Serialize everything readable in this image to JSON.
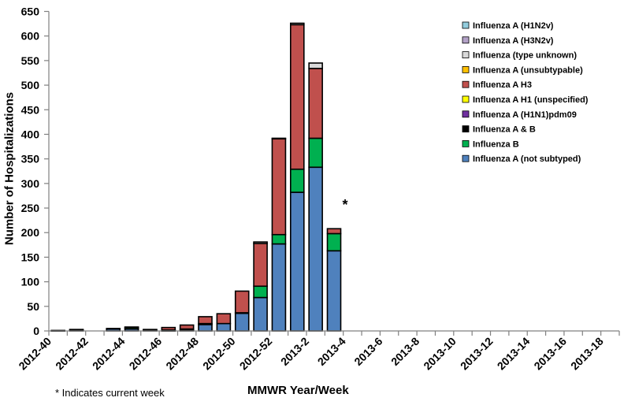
{
  "chart_data": {
    "type": "bar",
    "stacked": true,
    "xlabel": "MMWR Year/Week",
    "ylabel": "Number of Hospitalizations",
    "ylim": [
      0,
      650
    ],
    "yticks": [
      0,
      50,
      100,
      150,
      200,
      250,
      300,
      350,
      400,
      450,
      500,
      550,
      600,
      650
    ],
    "grid": false,
    "legend_position": "top-right",
    "categories": [
      "2012-40",
      "2012-41",
      "2012-42",
      "2012-43",
      "2012-44",
      "2012-45",
      "2012-46",
      "2012-47",
      "2012-48",
      "2012-49",
      "2012-50",
      "2012-51",
      "2012-52",
      "2013-1",
      "2013-2",
      "2013-3",
      "2013-4",
      "2013-5",
      "2013-6",
      "2013-7",
      "2013-8",
      "2013-9",
      "2013-10",
      "2013-11",
      "2013-12",
      "2013-13",
      "2013-14",
      "2013-15",
      "2013-16",
      "2013-17",
      "2013-18"
    ],
    "tick_labels": [
      "2012-40",
      "2012-42",
      "2012-44",
      "2012-46",
      "2012-48",
      "2012-50",
      "2012-52",
      "2013-2",
      "2013-4",
      "2013-6",
      "2013-8",
      "2013-10",
      "2013-12",
      "2013-14",
      "2013-16",
      "2013-18"
    ],
    "series": [
      {
        "name": "Influenza A (not subtyped)",
        "color": "#4f81bd",
        "values": [
          1,
          2,
          0,
          4,
          4,
          2,
          1,
          2,
          13,
          15,
          36,
          68,
          177,
          282,
          333,
          163,
          0,
          0,
          0,
          0,
          0,
          0,
          0,
          0,
          0,
          0,
          0,
          0,
          0,
          0,
          0
        ]
      },
      {
        "name": "Influenza B",
        "color": "#00b050",
        "values": [
          0,
          1,
          0,
          1,
          3,
          0,
          1,
          2,
          2,
          0,
          1,
          23,
          19,
          47,
          59,
          35,
          0,
          0,
          0,
          0,
          0,
          0,
          0,
          0,
          0,
          0,
          0,
          0,
          0,
          0,
          0
        ]
      },
      {
        "name": "Influenza A & B",
        "color": "#000000",
        "values": [
          0,
          0,
          0,
          0,
          0,
          0,
          0,
          0,
          0,
          0,
          0,
          0,
          0,
          0,
          0,
          0,
          0,
          0,
          0,
          0,
          0,
          0,
          0,
          0,
          0,
          0,
          0,
          0,
          0,
          0,
          0
        ]
      },
      {
        "name": "Influenza A (H1N1)pdm09",
        "color": "#7030a0",
        "values": [
          0,
          0,
          0,
          0,
          0,
          0,
          0,
          0,
          0,
          0,
          0,
          0,
          0,
          0,
          0,
          0,
          0,
          0,
          0,
          0,
          0,
          0,
          0,
          0,
          0,
          0,
          0,
          0,
          0,
          0,
          0
        ]
      },
      {
        "name": "Influenza A H1 (unspecified)",
        "color": "#ffff00",
        "values": [
          0,
          0,
          0,
          0,
          0,
          0,
          0,
          0,
          0,
          0,
          0,
          0,
          0,
          0,
          0,
          0,
          0,
          0,
          0,
          0,
          0,
          0,
          0,
          0,
          0,
          0,
          0,
          0,
          0,
          0,
          0
        ]
      },
      {
        "name": "Influenza A H3",
        "color": "#c0504d",
        "values": [
          0,
          0,
          0,
          0,
          1,
          1,
          5,
          8,
          14,
          20,
          44,
          87,
          195,
          294,
          142,
          10,
          0,
          0,
          0,
          0,
          0,
          0,
          0,
          0,
          0,
          0,
          0,
          0,
          0,
          0,
          0
        ]
      },
      {
        "name": "Influenza A (unsubtypable)",
        "color": "#ffc000",
        "values": [
          0,
          0,
          0,
          0,
          0,
          0,
          0,
          0,
          0,
          0,
          0,
          0,
          0,
          0,
          0,
          0,
          0,
          0,
          0,
          0,
          0,
          0,
          0,
          0,
          0,
          0,
          0,
          0,
          0,
          0,
          0
        ]
      },
      {
        "name": "Influenza (type unknown)",
        "color": "#d9d9d9",
        "values": [
          0,
          0,
          0,
          0,
          0,
          0,
          0,
          0,
          0,
          0,
          0,
          3,
          1,
          3,
          11,
          0,
          0,
          0,
          0,
          0,
          0,
          0,
          0,
          0,
          0,
          0,
          0,
          0,
          0,
          0,
          0
        ]
      },
      {
        "name": "Influenza A (H3N2v)",
        "color": "#b3a2c7",
        "values": [
          0,
          0,
          0,
          0,
          0,
          0,
          0,
          0,
          0,
          0,
          0,
          0,
          0,
          0,
          0,
          0,
          0,
          0,
          0,
          0,
          0,
          0,
          0,
          0,
          0,
          0,
          0,
          0,
          0,
          0,
          0
        ]
      },
      {
        "name": "Influenza A (H1N2v)",
        "color": "#93cddd",
        "values": [
          0,
          0,
          0,
          0,
          0,
          0,
          0,
          0,
          0,
          0,
          0,
          0,
          0,
          0,
          0,
          0,
          0,
          0,
          0,
          0,
          0,
          0,
          0,
          0,
          0,
          0,
          0,
          0,
          0,
          0,
          0
        ]
      }
    ],
    "legend_order": [
      "Influenza A (H1N2v)",
      "Influenza A (H3N2v)",
      "Influenza (type unknown)",
      "Influenza A (unsubtypable)",
      "Influenza A H3",
      "Influenza A H1 (unspecified)",
      "Influenza A (H1N1)pdm09",
      "Influenza A & B",
      "Influenza B",
      "Influenza A (not subtyped)"
    ],
    "annotations": [
      {
        "text": "*",
        "category": "2013-3"
      }
    ],
    "note": "* Indicates current week"
  }
}
